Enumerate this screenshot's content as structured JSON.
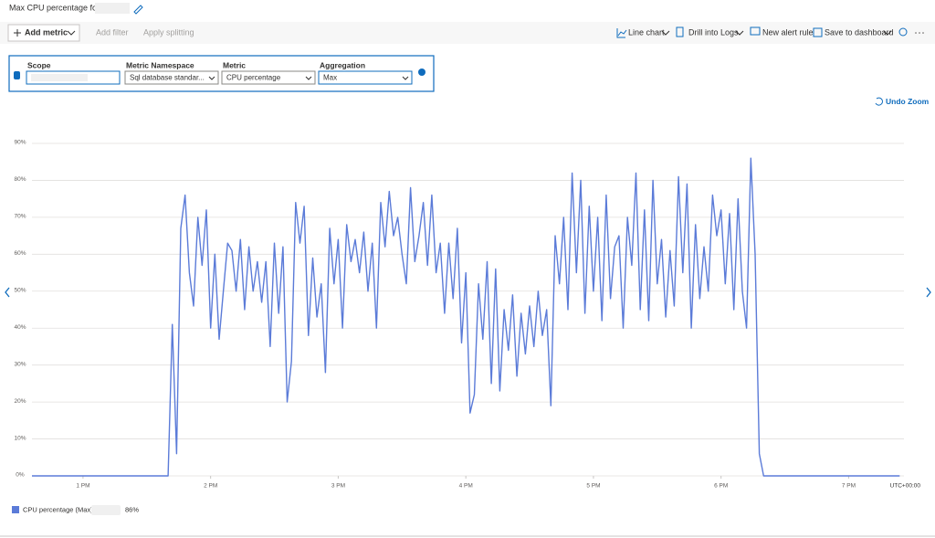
{
  "header": {
    "title": "Max CPU percentage for"
  },
  "toolbar": {
    "add_metric": "Add metric",
    "add_filter": "Add filter",
    "apply_splitting": "Apply splitting",
    "line_chart": "Line chart",
    "drill_into_logs": "Drill into Logs",
    "new_alert_rule": "New alert rule",
    "save_to_dashboard": "Save to dashboard"
  },
  "metric_selector": {
    "scope_label": "Scope",
    "namespace_label": "Metric Namespace",
    "namespace_value": "Sql database standar...",
    "metric_label": "Metric",
    "metric_value": "CPU percentage",
    "aggregation_label": "Aggregation",
    "aggregation_value": "Max"
  },
  "undo_zoom": "Undo Zoom",
  "chart_data": {
    "type": "line",
    "timezone_label": "UTC+00:00",
    "x": [
      756,
      820,
      822,
      824,
      826,
      828,
      830,
      832,
      834,
      836,
      838,
      840,
      842,
      844,
      846,
      848,
      850,
      852,
      854,
      856,
      858,
      860,
      862,
      864,
      866,
      868,
      870,
      872,
      874,
      876,
      878,
      880,
      882,
      884,
      886,
      888,
      890,
      892,
      894,
      896,
      898,
      900,
      902,
      904,
      906,
      908,
      910,
      912,
      914,
      916,
      918,
      920,
      922,
      924,
      926,
      928,
      930,
      932,
      934,
      936,
      938,
      940,
      942,
      944,
      946,
      948,
      950,
      952,
      954,
      956,
      958,
      960,
      962,
      964,
      966,
      968,
      970,
      972,
      974,
      976,
      978,
      980,
      982,
      984,
      986,
      988,
      990,
      992,
      994,
      996,
      998,
      1000,
      1002,
      1004,
      1006,
      1008,
      1010,
      1012,
      1014,
      1016,
      1018,
      1020,
      1022,
      1024,
      1026,
      1028,
      1030,
      1032,
      1034,
      1036,
      1038,
      1040,
      1042,
      1044,
      1046,
      1048,
      1050,
      1052,
      1054,
      1056,
      1058,
      1060,
      1062,
      1064,
      1066,
      1068,
      1070,
      1072,
      1074,
      1076,
      1078,
      1080,
      1082,
      1084,
      1086,
      1088,
      1090,
      1092,
      1094,
      1096,
      1098,
      1100,
      1164
    ],
    "series": [
      {
        "name": "CPU percentage (Max),",
        "color": "#5b7bd8",
        "legend_value": {
          "value": 86,
          "label": "86%"
        },
        "values": [
          0,
          0,
          41,
          6,
          67,
          76,
          55,
          46,
          70,
          57,
          72,
          40,
          60,
          37,
          50,
          63,
          61,
          50,
          64,
          45,
          62,
          50,
          58,
          47,
          58,
          35,
          63,
          44,
          62,
          20,
          31,
          74,
          63,
          73,
          38,
          59,
          43,
          52,
          28,
          67,
          52,
          64,
          40,
          68,
          58,
          64,
          55,
          66,
          50,
          63,
          40,
          74,
          62,
          77,
          65,
          70,
          60,
          52,
          78,
          58,
          65,
          74,
          57,
          76,
          55,
          63,
          44,
          63,
          48,
          67,
          36,
          55,
          17,
          22,
          52,
          37,
          58,
          25,
          56,
          23,
          45,
          34,
          49,
          27,
          44,
          33,
          46,
          35,
          50,
          38,
          45,
          19,
          65,
          52,
          70,
          45,
          82,
          55,
          80,
          44,
          73,
          50,
          70,
          42,
          76,
          48,
          62,
          65,
          40,
          70,
          57,
          82,
          45,
          72,
          42,
          80,
          52,
          64,
          43,
          61,
          46,
          81,
          55,
          79,
          40,
          68,
          48,
          62,
          50,
          76,
          65,
          72,
          52,
          71,
          45,
          75,
          50,
          40,
          86,
          60,
          6,
          0,
          0
        ]
      }
    ],
    "xlim": [
      756,
      1166
    ],
    "xticks": [
      {
        "value": 780,
        "label": "1 PM"
      },
      {
        "value": 840,
        "label": "2 PM"
      },
      {
        "value": 900,
        "label": "3 PM"
      },
      {
        "value": 960,
        "label": "4 PM"
      },
      {
        "value": 1020,
        "label": "5 PM"
      },
      {
        "value": 1080,
        "label": "6 PM"
      },
      {
        "value": 1140,
        "label": "7 PM"
      }
    ],
    "ylim": [
      0,
      90
    ],
    "yticks": [
      {
        "value": 0,
        "label": "0%"
      },
      {
        "value": 10,
        "label": "10%"
      },
      {
        "value": 20,
        "label": "20%"
      },
      {
        "value": 30,
        "label": "30%"
      },
      {
        "value": 40,
        "label": "40%"
      },
      {
        "value": 50,
        "label": "50%"
      },
      {
        "value": 60,
        "label": "60%"
      },
      {
        "value": 70,
        "label": "70%"
      },
      {
        "value": 80,
        "label": "80%"
      },
      {
        "value": 90,
        "label": "90%"
      }
    ],
    "grid": true
  }
}
